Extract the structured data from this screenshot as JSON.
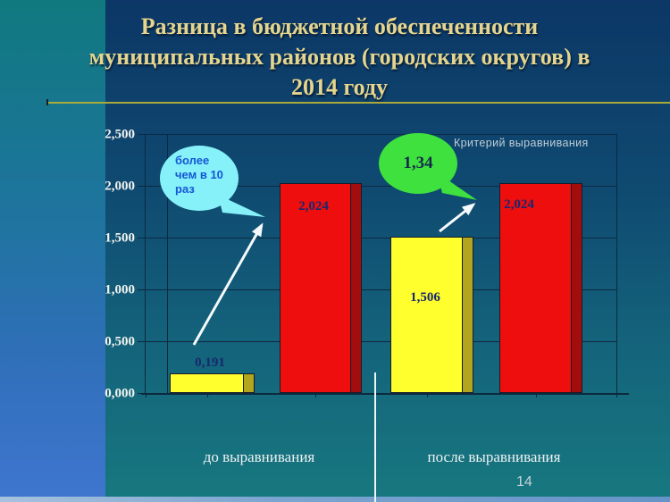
{
  "slide": {
    "title_lines": [
      "Разница в бюджетной обеспеченности",
      "муниципальных районов (городских округов) в",
      "2014 году"
    ],
    "page_number": "14"
  },
  "chart_data": {
    "type": "bar",
    "title": "Разница в бюджетной обеспеченности муниципальных районов (городских округов) в 2014 году",
    "categories": [
      "до выравнивания",
      "после выравнивания"
    ],
    "series": [
      {
        "name": "yellow-bars",
        "color": "#ffff2e",
        "side_color": "#b3a51e",
        "values": [
          0.191,
          1.506
        ],
        "labels": [
          "0,191",
          "1,506"
        ]
      },
      {
        "name": "red-bars",
        "color": "#ef0e0e",
        "side_color": "#a30d0d",
        "values": [
          2.024,
          2.024
        ],
        "labels": [
          "2,024",
          "2,024"
        ]
      }
    ],
    "y_axis": {
      "ticks": [
        "2,500",
        "2,000",
        "1,500",
        "1,000",
        "0,500",
        "0,000"
      ],
      "min": 0,
      "max": 2.5,
      "step": 0.5,
      "decimal_separator": ","
    },
    "ylim": [
      0,
      2.5
    ],
    "grid": true,
    "legend": false,
    "annotations": {
      "left_bubble_lines": [
        "более",
        "чем в 10",
        "раз"
      ],
      "left_bubble_text": "более чем в 10 раз",
      "right_bubble_text": "1,34",
      "criterion_label": "Критерий выравнивания"
    }
  }
}
